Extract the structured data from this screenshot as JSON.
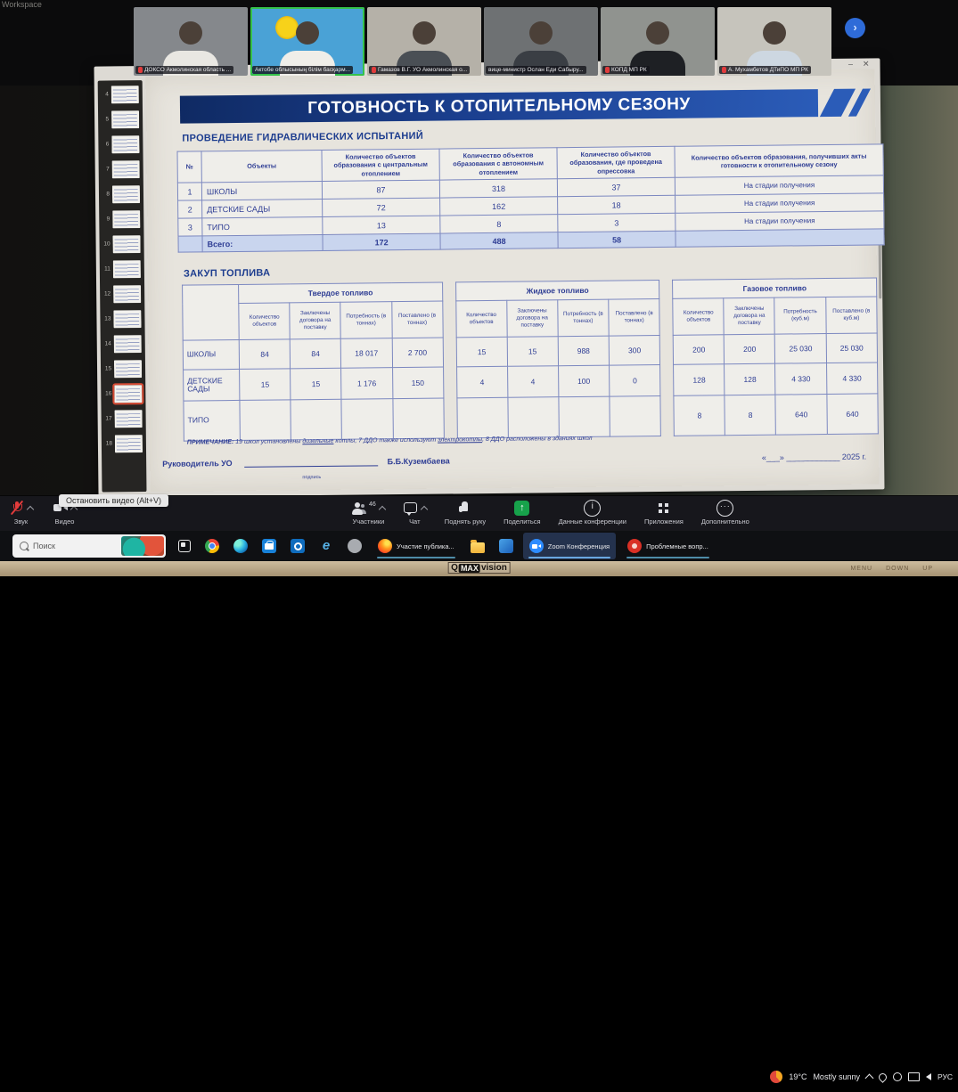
{
  "meta": {
    "workspace_label": "Workspace"
  },
  "video_strip": {
    "participants": [
      {
        "name": "ДОКСО Акмолинская область ...",
        "muted": true,
        "active": false,
        "bg": "#85888c",
        "body": "#e9e7e2"
      },
      {
        "name": "Актобе облысының білім басқарм...",
        "muted": false,
        "active": true,
        "bg": "#4aa2d6",
        "body": "#f0eee9",
        "flag": true
      },
      {
        "name": "Гамазов В.Г. УО Акмолинская о...",
        "muted": true,
        "active": false,
        "bg": "#b5b1a8",
        "body": "#4a4f55"
      },
      {
        "name": "вице-министр Ослан Еди Сабыру...",
        "muted": false,
        "active": false,
        "bg": "#6e7173",
        "body": "#3a3e44"
      },
      {
        "name": "КОПД МП РК",
        "muted": true,
        "active": false,
        "bg": "#90938f",
        "body": "#1e2024"
      },
      {
        "name": "А. Мухамбетов ДТиПО МП РК",
        "muted": true,
        "active": false,
        "bg": "#c6c4bc",
        "body": "#cdd7e1"
      }
    ],
    "next_button_arrow": "›"
  },
  "window": {
    "minimize_glyph": "–",
    "close_glyph": "✕",
    "thumbnails": {
      "numbers": [
        4,
        5,
        6,
        7,
        8,
        9,
        10,
        11,
        12,
        13,
        14,
        15,
        16,
        17,
        18
      ],
      "active": 16
    }
  },
  "slide": {
    "title": "ГОТОВНОСТЬ К ОТОПИТЕЛЬНОМУ СЕЗОНУ",
    "section1": "ПРОВЕДЕНИЕ ГИДРАВЛИЧЕСКИХ ИСПЫТАНИЙ",
    "table1": {
      "headers": [
        "№",
        "Объекты",
        "Количество объектов образования с центральным отоплением",
        "Количество объектов образования с автономным отоплением",
        "Количество объектов образования, где проведена опрессовка",
        "Количество объектов образования, получивших акты готовности к отопительному сезону"
      ],
      "rows": [
        [
          "1",
          "ШКОЛЫ",
          "87",
          "318",
          "37",
          "На стадии получения"
        ],
        [
          "2",
          "ДЕТСКИЕ САДЫ",
          "72",
          "162",
          "18",
          "На стадии получения"
        ],
        [
          "3",
          "ТИПО",
          "13",
          "8",
          "3",
          "На стадии получения"
        ]
      ],
      "total": [
        "",
        "Всего:",
        "172",
        "488",
        "58",
        ""
      ]
    },
    "section2": "ЗАКУП ТОПЛИВА",
    "fuel": {
      "groups": [
        {
          "title": "Твердое топливо",
          "headers": [
            "Количество объектов",
            "Заключены договора на поставку",
            "Потребность (в тоннах)",
            "Поставлено (в тоннах)"
          ]
        },
        {
          "title": "Жидкое топливо",
          "headers": [
            "Количество объектов",
            "Заключены договора на поставку",
            "Потребность (в тоннах)",
            "Поставлено (в тоннах)"
          ]
        },
        {
          "title": "Газовое топливо",
          "headers": [
            "Количество объектов",
            "Заключены договора на поставку",
            "Потребность (куб.м)",
            "Поставлено (в куб.м)"
          ]
        }
      ],
      "row_labels": [
        "ШКОЛЫ",
        "ДЕТСКИЕ САДЫ",
        "ТИПО"
      ],
      "values": [
        [
          [
            "84",
            "84",
            "18 017",
            "2 700"
          ],
          [
            "15",
            "15",
            "988",
            "300"
          ],
          [
            "200",
            "200",
            "25 030",
            "25 030"
          ]
        ],
        [
          [
            "15",
            "15",
            "1 176",
            "150"
          ],
          [
            "4",
            "4",
            "100",
            "0"
          ],
          [
            "128",
            "128",
            "4 330",
            "4 330"
          ]
        ],
        [
          [
            "",
            "",
            "",
            ""
          ],
          [
            "",
            "",
            "",
            ""
          ],
          [
            "8",
            "8",
            "640",
            "640"
          ]
        ]
      ]
    },
    "note_segments": [
      {
        "t": "ПРИМЕЧАНИЕ: ",
        "b": true
      },
      {
        "t": "19 школ установлены "
      },
      {
        "t": "дизельные",
        "u": true
      },
      {
        "t": " котлы, 7 ДДО также используют "
      },
      {
        "t": "электрокотлы",
        "u": true
      },
      {
        "t": ", 8 ДДО расположены в зданиях школ"
      }
    ],
    "signature": {
      "role": "Руководитель УО",
      "caption": "подпись",
      "name": "Б.Б.Кузембаева",
      "date": "«___» ____________ 2025 г."
    }
  },
  "zoom_toolbar": {
    "tooltip": "Остановить видео (Alt+V)",
    "items": [
      {
        "id": "audio",
        "icon": "mic",
        "label": "Звук",
        "muted": true,
        "chevron": true,
        "side": "left"
      },
      {
        "id": "video",
        "icon": "video",
        "label": "Видео",
        "chevron": true,
        "side": "left"
      },
      {
        "id": "participants",
        "icon": "users",
        "label": "Участники",
        "badge": "46",
        "chevron": true
      },
      {
        "id": "chat",
        "icon": "chat",
        "label": "Чат",
        "chevron": true
      },
      {
        "id": "raise-hand",
        "icon": "hand",
        "label": "Поднять руку"
      },
      {
        "id": "share",
        "icon": "share",
        "label": "Поделиться",
        "green": true
      },
      {
        "id": "meeting-info",
        "icon": "info",
        "label": "Данные конференции"
      },
      {
        "id": "apps",
        "icon": "apps",
        "label": "Приложения"
      },
      {
        "id": "more",
        "icon": "more",
        "label": "Дополнительно"
      }
    ]
  },
  "taskbar": {
    "search_placeholder": "Поиск",
    "items": [
      {
        "icon": "taskview"
      },
      {
        "icon": "chrome"
      },
      {
        "icon": "edge"
      },
      {
        "icon": "store"
      },
      {
        "icon": "outlook"
      },
      {
        "icon": "ie"
      },
      {
        "icon": "globe"
      },
      {
        "icon": "firefox",
        "label": "Участие публика..."
      },
      {
        "icon": "folder"
      },
      {
        "icon": "blueapp"
      },
      {
        "icon": "zoom",
        "label": "Zoom Конференция",
        "active": true
      },
      {
        "icon": "pdf",
        "label": "Проблемные вопр..."
      }
    ],
    "tray": {
      "temperature": "19°C",
      "condition": "Mostly sunny",
      "language": "РУС"
    }
  },
  "bezel": {
    "brand_prefix": "Q",
    "brand_mid": "MAX",
    "brand_suffix": "vision",
    "buttons": [
      "MENU",
      "DOWN",
      "UP"
    ]
  }
}
